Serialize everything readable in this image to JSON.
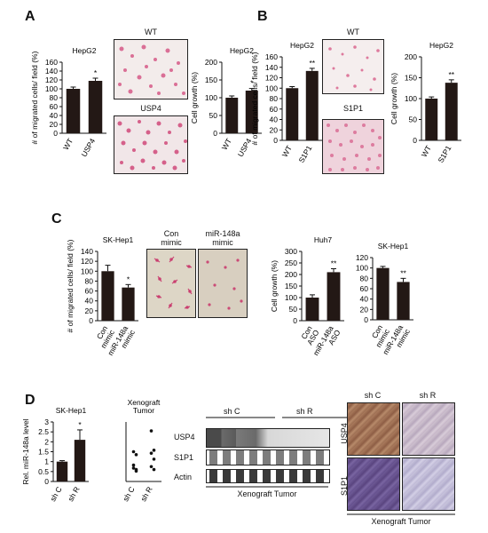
{
  "panels": {
    "A": {
      "letter": "A",
      "photo_top_label": "WT",
      "photo_bottom_label": "USP4"
    },
    "B": {
      "letter": "B",
      "photo_top_label": "WT",
      "photo_bottom_label": "S1P1"
    },
    "C": {
      "letter": "C",
      "photo_left_label": "Con\nmimic",
      "photo_right_label": "miR-148a\nmimic"
    },
    "D": {
      "letter": "D",
      "blot_rows": [
        "USP4",
        "S1P1",
        "Actin"
      ],
      "blot_groups": [
        "sh C",
        "sh R"
      ],
      "blot_caption": "Xenograft Tumor",
      "ihc_cols": [
        "sh C",
        "sh R"
      ],
      "ihc_rows": [
        "USP4",
        "S1P1"
      ],
      "ihc_caption": "Xenograft Tumor"
    }
  },
  "chart_data": [
    {
      "id": "a-migration",
      "type": "bar",
      "title": "HepG2",
      "ylabel": "# of migrated cells/ field (%)",
      "categories": [
        "WT",
        "USP4"
      ],
      "values": [
        100,
        118
      ],
      "errors": [
        4,
        6
      ],
      "significance": [
        "",
        "*"
      ],
      "ylim": [
        0,
        160
      ],
      "yticks": [
        0,
        20,
        40,
        60,
        80,
        100,
        120,
        140,
        160
      ]
    },
    {
      "id": "a-growth",
      "type": "bar",
      "title": "HepG2",
      "ylabel": "Cell growth (%)",
      "categories": [
        "WT",
        "USP4"
      ],
      "values": [
        100,
        120
      ],
      "errors": [
        5,
        6
      ],
      "significance": [
        "",
        "*"
      ],
      "ylim": [
        0,
        200
      ],
      "yticks": [
        0,
        50,
        100,
        150,
        200
      ]
    },
    {
      "id": "b-migration",
      "type": "bar",
      "title": "HepG2",
      "ylabel": "# of migrated cells/ field (%)",
      "categories": [
        "WT",
        "S1P1"
      ],
      "values": [
        100,
        133
      ],
      "errors": [
        3,
        5
      ],
      "significance": [
        "",
        "**"
      ],
      "ylim": [
        0,
        160
      ],
      "yticks": [
        0,
        20,
        40,
        60,
        80,
        100,
        120,
        140,
        160
      ]
    },
    {
      "id": "b-growth",
      "type": "bar",
      "title": "HepG2",
      "ylabel": "Cell growth (%)",
      "categories": [
        "WT",
        "S1P1"
      ],
      "values": [
        100,
        138
      ],
      "errors": [
        4,
        7
      ],
      "significance": [
        "",
        "**"
      ],
      "ylim": [
        0,
        200
      ],
      "yticks": [
        0,
        50,
        100,
        150,
        200
      ]
    },
    {
      "id": "c-migration",
      "type": "bar",
      "title": "SK-Hep1",
      "ylabel": "# of migrated cells/ field (%)",
      "categories": [
        "Con\nmimic",
        "miR-148a\nmimic"
      ],
      "values": [
        100,
        67
      ],
      "errors": [
        12,
        6
      ],
      "significance": [
        "",
        "*"
      ],
      "ylim": [
        0,
        140
      ],
      "yticks": [
        0,
        20,
        40,
        60,
        80,
        100,
        120,
        140
      ]
    },
    {
      "id": "c-growth-huh7",
      "type": "bar",
      "title": "Huh7",
      "ylabel": "Cell growth (%)",
      "categories": [
        "Con\nASO",
        "miR-148a\nASO"
      ],
      "values": [
        100,
        210
      ],
      "errors": [
        12,
        15
      ],
      "significance": [
        "",
        "**"
      ],
      "ylim": [
        0,
        300
      ],
      "yticks": [
        0,
        50,
        100,
        150,
        200,
        250,
        300
      ]
    },
    {
      "id": "c-growth-skhep1",
      "type": "bar",
      "title": "SK-Hep1",
      "ylabel": "",
      "categories": [
        "Con\nmimic",
        "miR-148a\nmimic"
      ],
      "values": [
        100,
        73
      ],
      "errors": [
        3,
        7
      ],
      "significance": [
        "",
        "**"
      ],
      "ylim": [
        0,
        120
      ],
      "yticks": [
        0,
        20,
        40,
        60,
        80,
        100,
        120
      ]
    },
    {
      "id": "d-mir-level",
      "type": "bar",
      "title": "SK-Hep1",
      "ylabel": "Rel. miR-148a level",
      "categories": [
        "sh C",
        "sh R"
      ],
      "values": [
        1,
        2.1
      ],
      "errors": [
        0.05,
        0.5
      ],
      "significance": [
        "",
        "*"
      ],
      "ylim": [
        0,
        3
      ],
      "yticks": [
        0,
        0.5,
        1,
        1.5,
        2,
        2.5,
        3
      ]
    },
    {
      "id": "d-xenograft",
      "type": "scatter",
      "title": "Xenograft\nTumor",
      "ylabel": "",
      "categories": [
        "sh C",
        "sh R"
      ],
      "points": [
        [
          2,
          1.8,
          1.1,
          0.8,
          0.9,
          0.7
        ],
        [
          3.4,
          2.1,
          1.9,
          1.5,
          1.0,
          0.8
        ]
      ],
      "ylim": [
        0,
        4
      ]
    }
  ]
}
